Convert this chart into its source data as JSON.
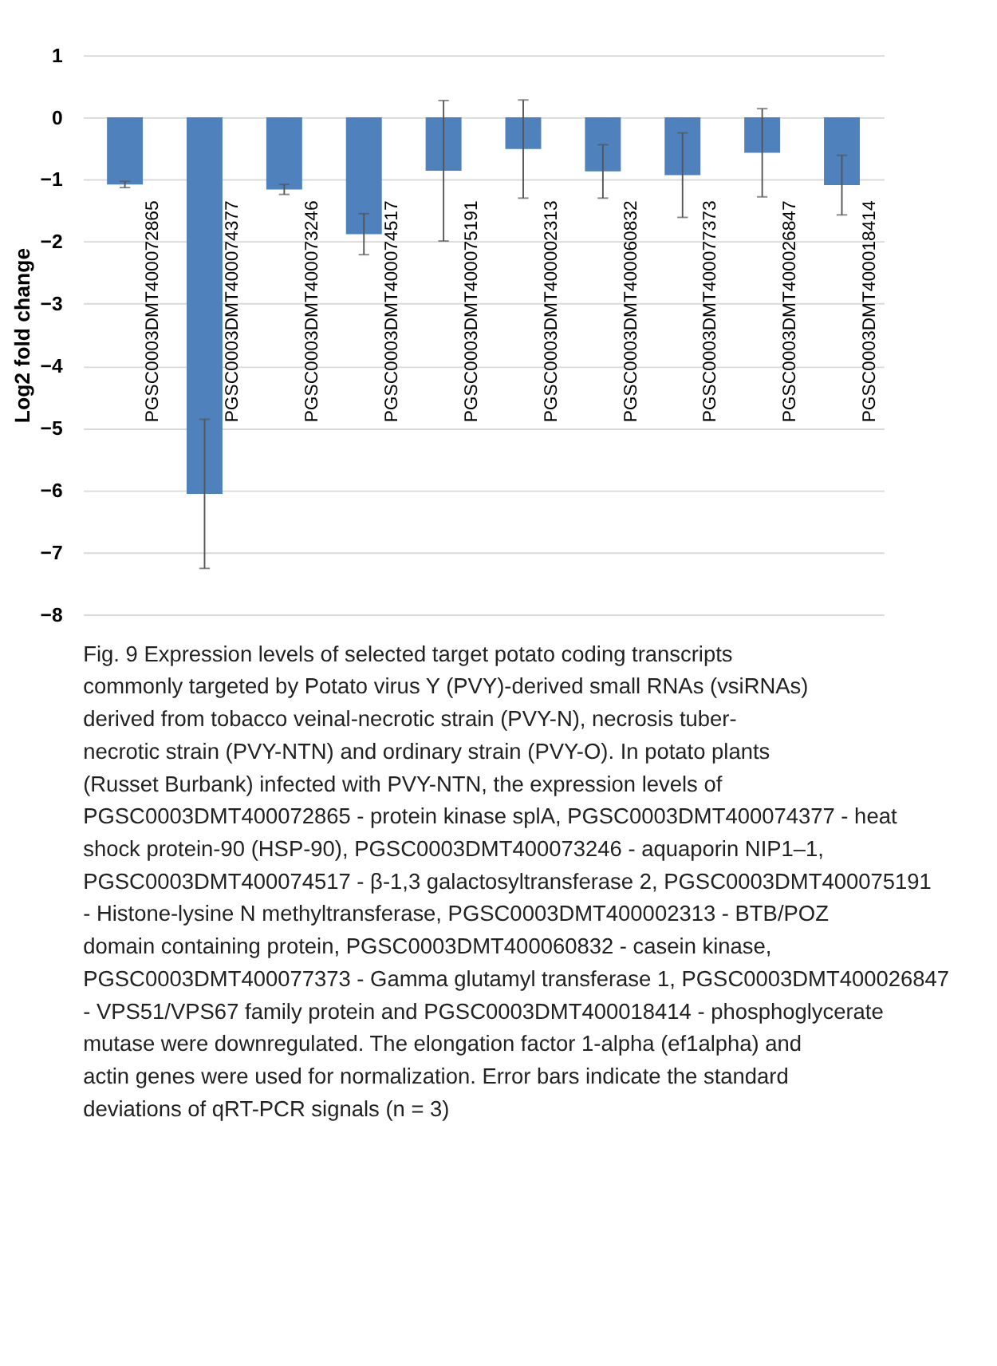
{
  "chart_data": {
    "type": "bar",
    "categories": [
      "PGSC0003DMT400072865",
      "PGSC0003DMT400074377",
      "PGSC0003DMT400073246",
      "PGSC0003DMT400074517",
      "PGSC0003DMT400075191",
      "PGSC0003DMT400002313",
      "PGSC0003DMT400060832",
      "PGSC0003DMT400077373",
      "PGSC0003DMT400026847",
      "PGSC0003DMT400018414"
    ],
    "values": [
      -1.08,
      -6.06,
      -1.16,
      -1.88,
      -0.86,
      -0.51,
      -0.87,
      -0.93,
      -0.57,
      -1.09
    ],
    "errors": [
      0.05,
      1.2,
      0.08,
      0.33,
      1.13,
      0.79,
      0.43,
      0.68,
      0.71,
      0.48
    ],
    "color": "#4f81bd",
    "ylabel": "Log2 fold change",
    "ylim": [
      -8,
      1
    ],
    "yticks": [
      -8,
      -7,
      -6,
      -5,
      -4,
      -3,
      -2,
      -1,
      0,
      1
    ],
    "grid": "y",
    "annotations": [
      "Fig. 9 Expression levels of selected target potato coding transcripts commonly targeted by Potato virus Y (PVY)-derived small RNAs (vsiRNAs) derived from tobacco veinal-necrotic strain (PVY-N), necrosis tuber-necrotic strain (PVY-NTN) and ordinary strain (PVY-O). In potato plants (Russet Burbank) infected with PVY-NTN, the expression levels of PGSC0003DMT400072865 - protein kinase splA, PGSC0003DMT400074377 - heat shock protein-90 (HSP-90), PGSC0003DMT400073246 - aquaporin NIP1–1, PGSC0003DMT400074517 - β-1,3 galactosyltransferase 2, PGSC0003DMT400075191 - Histone-lysine N methyltransferase, PGSC0003DMT400002313 - BTB/POZ domain containing protein, PGSC0003DMT400060832 - casein kinase, PGSC0003DMT400077373 - Gamma glutamyl transferase 1, PGSC0003DMT400026847 - VPS51/VPS67 family protein and PGSC0003DMT400018414 - phosphoglycerate mutase were downregulated. The elongation factor 1-alpha (ef1alpha) and actin genes were used for normalization. Error bars indicate the standard deviations of qRT-PCR signals (n = 3)"
    ]
  }
}
